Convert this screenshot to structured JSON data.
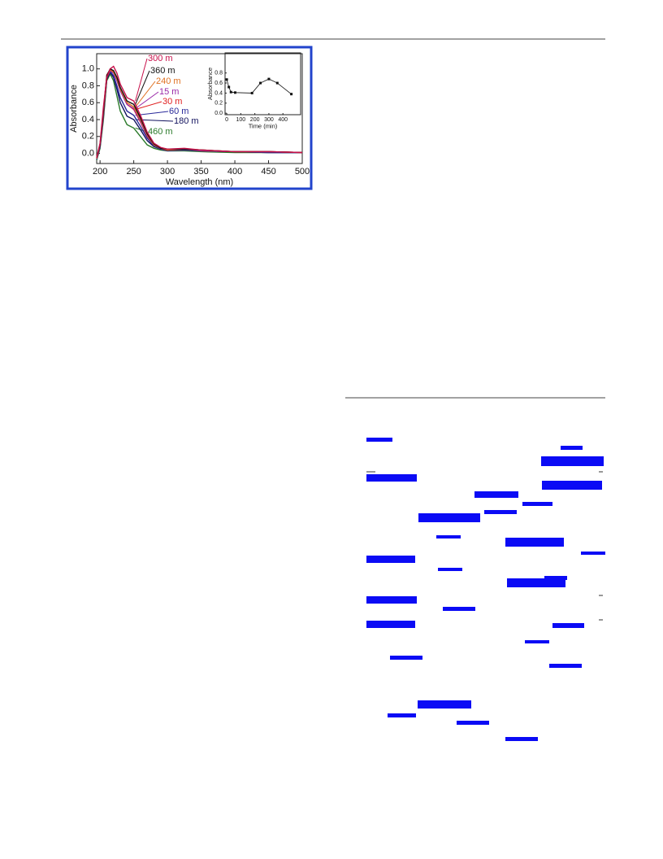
{
  "chart_data": [
    {
      "type": "line",
      "x_label": "Wavelength (nm)",
      "y_label": "Absorbance",
      "x": [
        195,
        200,
        205,
        210,
        215,
        220,
        225,
        230,
        240,
        250,
        260,
        270,
        280,
        290,
        300,
        325,
        350,
        400,
        450,
        500
      ],
      "xlim": [
        195,
        500
      ],
      "xticks": [
        200,
        250,
        300,
        350,
        400,
        450,
        500
      ],
      "ylim": [
        -0.12,
        1.18
      ],
      "yticks": [
        {
          "value": 0,
          "label": "0.0"
        },
        {
          "value": 0.2,
          "label": "0.2"
        },
        {
          "value": 0.4,
          "label": "0.4"
        },
        {
          "value": 0.6,
          "label": "0.6"
        },
        {
          "value": 0.8,
          "label": "0.8"
        },
        {
          "value": 1,
          "label": "1.0"
        }
      ],
      "series": [
        {
          "name": "300 m",
          "color": "#c8104a",
          "values": [
            -0.05,
            0.12,
            0.55,
            0.9,
            1.0,
            1.03,
            0.95,
            0.82,
            0.66,
            0.62,
            0.45,
            0.25,
            0.12,
            0.07,
            0.05,
            0.06,
            0.04,
            0.02,
            0.02,
            0.01
          ]
        },
        {
          "name": "360 m",
          "color": "#111111",
          "values": [
            -0.05,
            0.1,
            0.5,
            0.92,
            1.0,
            0.98,
            0.9,
            0.78,
            0.62,
            0.58,
            0.42,
            0.23,
            0.11,
            0.06,
            0.05,
            0.05,
            0.04,
            0.02,
            0.02,
            0.01
          ]
        },
        {
          "name": "240 m",
          "color": "#e07020",
          "values": [
            -0.06,
            0.1,
            0.48,
            0.9,
            0.99,
            0.96,
            0.88,
            0.76,
            0.6,
            0.55,
            0.4,
            0.22,
            0.1,
            0.06,
            0.04,
            0.05,
            0.04,
            0.02,
            0.02,
            0.01
          ]
        },
        {
          "name": "15 m",
          "color": "#9a2aa8",
          "values": [
            -0.06,
            0.09,
            0.46,
            0.9,
            0.98,
            0.95,
            0.86,
            0.74,
            0.58,
            0.53,
            0.38,
            0.21,
            0.1,
            0.06,
            0.04,
            0.05,
            0.03,
            0.02,
            0.02,
            0.01
          ]
        },
        {
          "name": "30 m",
          "color": "#e02020",
          "values": [
            -0.05,
            0.11,
            0.5,
            0.93,
            0.99,
            0.97,
            0.88,
            0.75,
            0.58,
            0.52,
            0.37,
            0.2,
            0.1,
            0.06,
            0.04,
            0.05,
            0.03,
            0.02,
            0.02,
            0.01
          ]
        },
        {
          "name": "60 m",
          "color": "#2a2a9a",
          "values": [
            -0.07,
            0.08,
            0.45,
            0.9,
            0.97,
            0.92,
            0.8,
            0.66,
            0.5,
            0.45,
            0.32,
            0.18,
            0.09,
            0.05,
            0.04,
            0.04,
            0.03,
            0.02,
            0.01,
            0.01
          ]
        },
        {
          "name": "180 m",
          "color": "#12125e",
          "values": [
            -0.07,
            0.08,
            0.44,
            0.88,
            0.96,
            0.9,
            0.76,
            0.6,
            0.44,
            0.4,
            0.28,
            0.15,
            0.08,
            0.05,
            0.03,
            0.04,
            0.03,
            0.02,
            0.01,
            0.01
          ]
        },
        {
          "name": "460 m",
          "color": "#2a7a2a",
          "values": [
            -0.08,
            0.06,
            0.4,
            0.86,
            0.94,
            0.86,
            0.68,
            0.5,
            0.34,
            0.3,
            0.2,
            0.1,
            0.06,
            0.04,
            0.03,
            0.03,
            0.02,
            0.01,
            0.01,
            0.01
          ]
        }
      ]
    },
    {
      "type": "line",
      "x_label": "Time (min)",
      "y_label": "Absorbance",
      "x": [
        0,
        15,
        30,
        60,
        180,
        240,
        300,
        360,
        460
      ],
      "xlim": [
        -12,
        526
      ],
      "xticks": [
        0,
        100,
        200,
        300,
        400
      ],
      "ylim": [
        -0.03,
        1.2
      ],
      "yticks": [
        {
          "value": 0,
          "label": "0.0"
        },
        {
          "value": 0.2,
          "label": "0.2"
        },
        {
          "value": 0.4,
          "label": "0.4"
        },
        {
          "value": 0.6,
          "label": "0.6"
        },
        {
          "value": 0.8,
          "label": "0.8"
        }
      ],
      "series": [
        {
          "color": "#111111",
          "values": [
            0.67,
            0.52,
            0.42,
            0.41,
            0.4,
            0.6,
            0.68,
            0.6,
            0.38
          ]
        }
      ]
    }
  ]
}
